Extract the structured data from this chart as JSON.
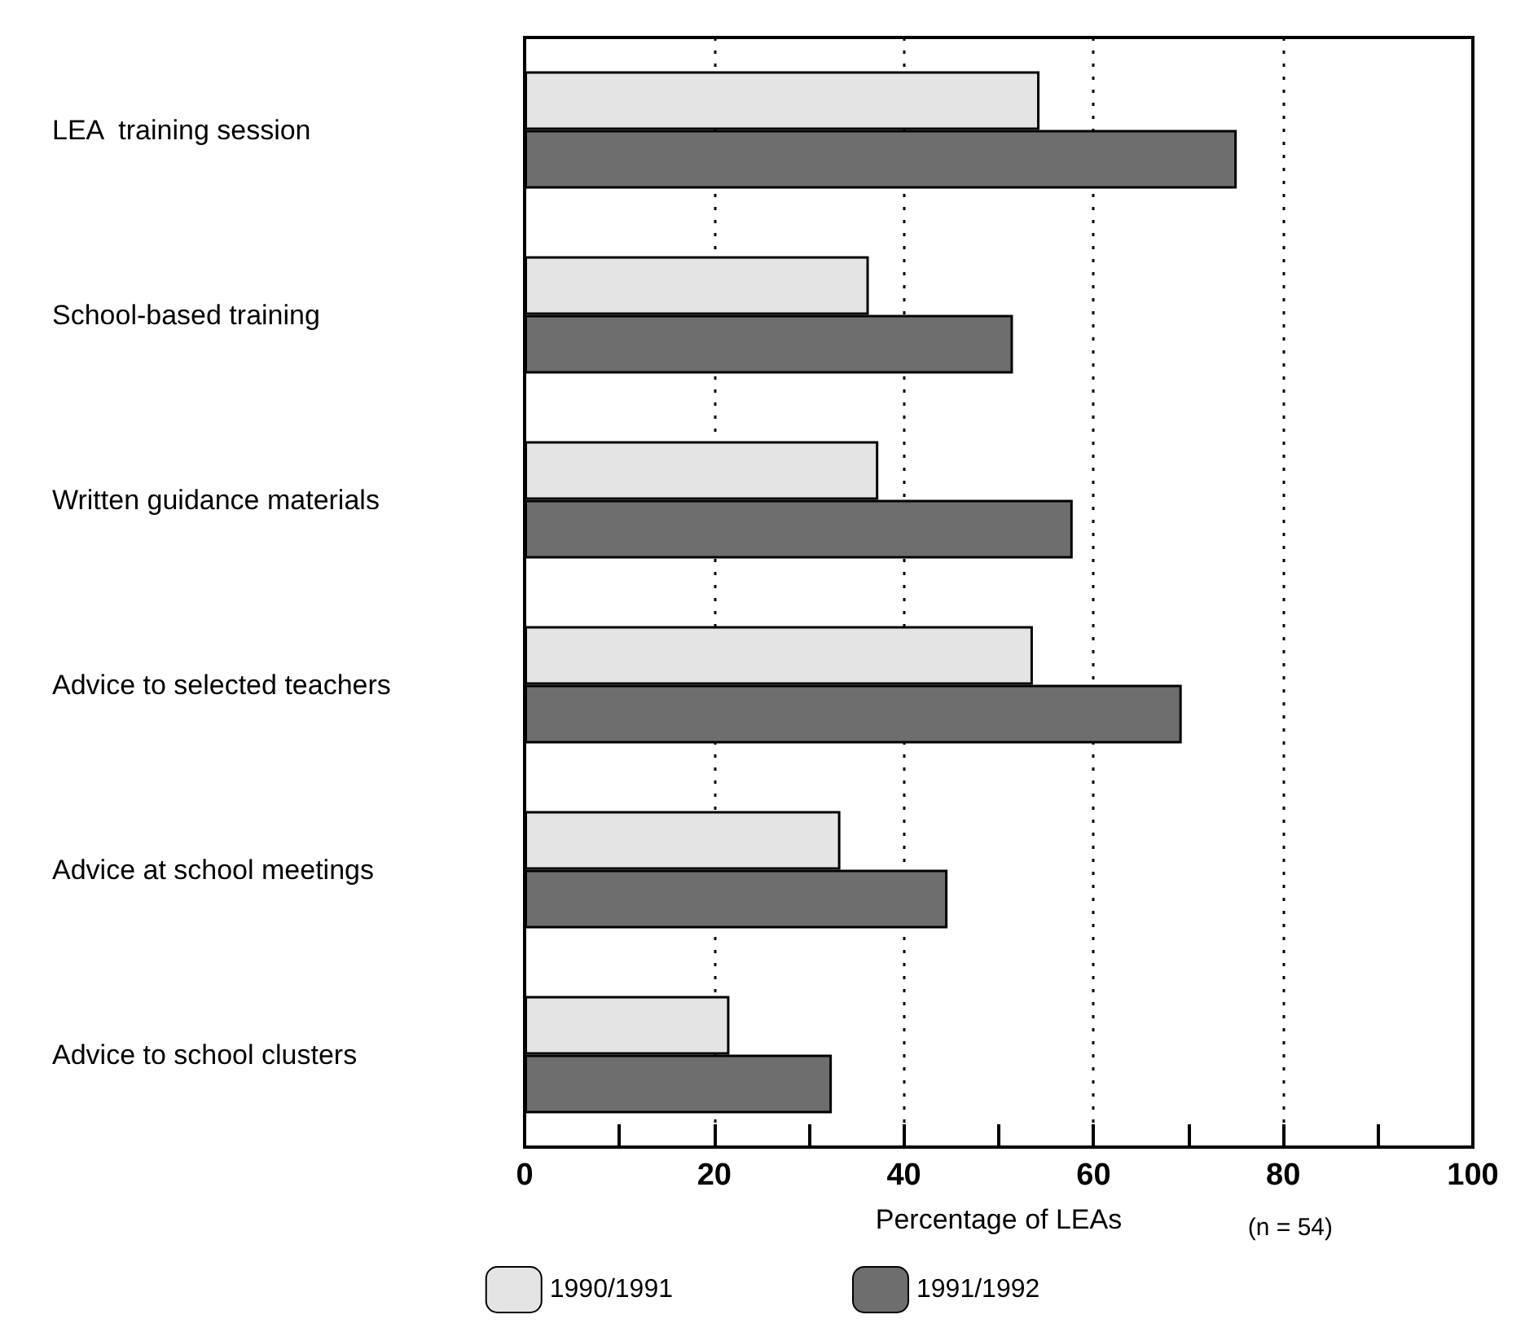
{
  "chart_data": {
    "type": "bar",
    "orientation": "horizontal",
    "xlabel": "Percentage of LEAs",
    "annotations": [
      "(n = 54)"
    ],
    "categories": [
      "LEA  training session",
      "School-based training",
      "Written guidance materials",
      "Advice to selected teachers",
      "Advice at school meetings",
      "Advice to school clusters"
    ],
    "series": [
      {
        "name": "1990/1991",
        "color": "#e4e4e4",
        "values": [
          54.3,
          36.3,
          37.3,
          53.6,
          33.3,
          21.6
        ]
      },
      {
        "name": "1991/1992",
        "color": "#6e6e6e",
        "values": [
          75.1,
          51.5,
          57.8,
          69.3,
          44.6,
          32.4
        ]
      }
    ],
    "xlim": [
      0,
      100
    ],
    "xticks": [
      0,
      {
        "value": 10,
        "label": null
      },
      20,
      {
        "value": 30,
        "label": null
      },
      40,
      {
        "value": 50,
        "label": null
      },
      60,
      {
        "value": 70,
        "label": null
      },
      80,
      {
        "value": 90,
        "label": null
      },
      100
    ],
    "grid": "x",
    "legend": "bottom"
  }
}
